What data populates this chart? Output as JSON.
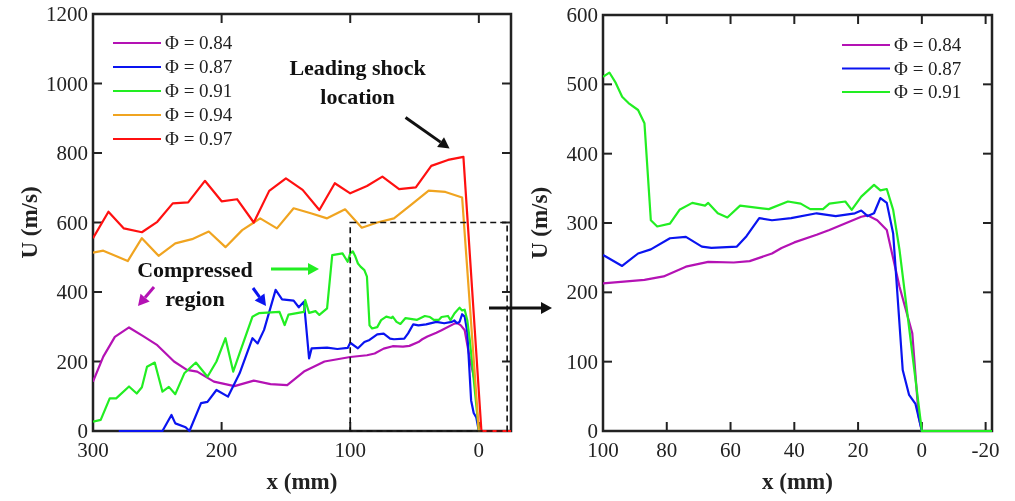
{
  "chart_data": [
    {
      "type": "line",
      "xlabel": "x (mm)",
      "ylabel": "U (m/s)",
      "xlim": [
        300,
        -25
      ],
      "xticks": [
        300,
        200,
        100,
        0
      ],
      "ylim": [
        0,
        1200
      ],
      "yticks": [
        0,
        200,
        400,
        600,
        800,
        1000,
        1200
      ],
      "legend": "top left",
      "grid": false,
      "annotations": [
        "Compressed region",
        {
          "text": "Leading shock location",
          "x": 15,
          "y": 790
        }
      ],
      "series": [
        {
          "name": "Φ = 0.84",
          "color": "#b412b4",
          "x": [
            300,
            292,
            283,
            272,
            261,
            250,
            237,
            227,
            219,
            206,
            190,
            175,
            162,
            149,
            136,
            120,
            100,
            87,
            81,
            74,
            67,
            59,
            54,
            47,
            44,
            40,
            33,
            29,
            19,
            17,
            14,
            11,
            7,
            3
          ],
          "values": [
            142,
            214,
            271,
            298,
            273,
            247,
            200,
            176,
            171,
            142,
            129,
            145,
            135,
            132,
            171,
            200,
            213,
            218,
            223,
            237,
            244,
            243,
            245,
            256,
            264,
            272,
            283,
            290,
            309,
            311,
            304,
            290,
            208,
            141
          ]
        },
        {
          "name": "Φ = 0.87",
          "color": "#0a14f0",
          "x": [
            280,
            250,
            246,
            239,
            236,
            228,
            225,
            216,
            211,
            204,
            195,
            186,
            176,
            172,
            167,
            158,
            153,
            144,
            140,
            136,
            132,
            130,
            118,
            110,
            102,
            100,
            94,
            89,
            85,
            79,
            74,
            69,
            66,
            58,
            55,
            51,
            47,
            41,
            33,
            27,
            21,
            19,
            17,
            15,
            13,
            11,
            9,
            6,
            4,
            2,
            0
          ],
          "values": [
            0,
            0,
            0,
            46,
            22,
            11,
            0,
            80,
            84,
            118,
            99,
            166,
            267,
            252,
            291,
            406,
            379,
            375,
            356,
            372,
            209,
            238,
            240,
            236,
            239,
            254,
            238,
            256,
            262,
            278,
            280,
            266,
            264,
            266,
            281,
            307,
            304,
            307,
            314,
            310,
            314,
            318,
            310,
            314,
            336,
            329,
            285,
            88,
            52,
            39,
            0
          ]
        },
        {
          "name": "Φ = 0.91",
          "color": "#22ee22",
          "x": [
            300,
            294,
            287,
            282,
            272,
            266,
            262,
            258,
            252,
            246,
            241,
            236,
            229,
            220,
            211,
            204,
            197,
            191,
            186,
            176,
            171,
            155,
            151,
            148,
            136,
            135,
            132,
            127,
            124,
            118,
            114,
            106,
            102,
            100,
            98,
            96,
            94,
            92,
            89,
            87,
            85,
            83,
            79,
            76,
            72,
            68,
            67,
            64,
            61,
            57,
            48,
            42,
            38,
            35,
            31,
            29,
            24,
            22,
            19,
            15,
            13,
            11,
            9,
            7,
            0,
            -22
          ],
          "values": [
            27,
            32,
            94,
            94,
            128,
            108,
            126,
            185,
            197,
            113,
            127,
            106,
            166,
            197,
            156,
            200,
            267,
            171,
            224,
            329,
            339,
            343,
            305,
            335,
            343,
            377,
            340,
            345,
            334,
            353,
            506,
            511,
            487,
            511,
            517,
            502,
            482,
            473,
            463,
            444,
            304,
            295,
            299,
            319,
            329,
            325,
            329,
            314,
            308,
            325,
            320,
            331,
            328,
            320,
            320,
            328,
            331,
            319,
            338,
            355,
            347,
            349,
            319,
            261,
            0,
            0
          ]
        },
        {
          "name": "Φ = 0.94",
          "color": "#f0a420",
          "x": [
            300,
            292,
            273,
            262,
            249,
            236,
            223,
            210,
            197,
            184,
            170,
            157,
            144,
            130,
            118,
            104,
            91,
            79,
            66,
            53,
            39,
            26,
            13,
            0,
            -25
          ],
          "values": [
            513,
            519,
            489,
            555,
            504,
            540,
            552,
            574,
            529,
            578,
            612,
            583,
            641,
            626,
            612,
            638,
            585,
            600,
            612,
            650,
            692,
            688,
            672,
            0,
            0
          ]
        },
        {
          "name": "Φ = 0.97",
          "color": "#ff1010",
          "x": [
            300,
            288,
            276,
            262,
            250,
            238,
            226,
            213,
            200,
            188,
            175,
            163,
            150,
            137,
            124,
            112,
            100,
            87,
            75,
            62,
            49,
            37,
            24,
            12,
            -2,
            -25
          ],
          "values": [
            555,
            631,
            583,
            572,
            602,
            655,
            658,
            720,
            661,
            667,
            600,
            691,
            727,
            694,
            636,
            713,
            684,
            705,
            732,
            696,
            701,
            763,
            780,
            789,
            0,
            0
          ]
        }
      ]
    },
    {
      "type": "line",
      "xlabel": "x (mm)",
      "ylabel": "U (m/s)",
      "xlim": [
        100,
        -22
      ],
      "xticks": [
        100,
        80,
        60,
        40,
        20,
        0,
        -20
      ],
      "ylim": [
        0,
        600
      ],
      "yticks": [
        0,
        100,
        200,
        300,
        400,
        500,
        600
      ],
      "legend": "top right",
      "grid": false,
      "series": [
        {
          "name": "Φ = 0.84",
          "color": "#b412b4",
          "x": [
            100,
            87,
            81,
            74,
            67,
            59,
            54,
            47,
            44,
            40,
            33,
            29,
            19,
            17,
            14,
            11,
            7,
            3,
            1,
            0
          ],
          "values": [
            213,
            218,
            223,
            237,
            244,
            243,
            245,
            256,
            264,
            272,
            283,
            290,
            309,
            311,
            304,
            290,
            208,
            141,
            21,
            0
          ]
        },
        {
          "name": "Φ = 0.87",
          "color": "#0a14f0",
          "x": [
            100,
            94,
            89,
            85,
            79,
            74,
            69,
            66,
            58,
            55,
            51,
            47,
            41,
            33,
            27,
            21,
            19,
            17,
            15,
            13,
            11,
            9,
            6,
            4,
            2,
            0
          ],
          "values": [
            254,
            238,
            256,
            262,
            278,
            280,
            266,
            264,
            266,
            281,
            307,
            304,
            307,
            314,
            310,
            314,
            318,
            310,
            314,
            336,
            329,
            285,
            88,
            52,
            39,
            0
          ]
        },
        {
          "name": "Φ = 0.91",
          "color": "#22ee22",
          "x": [
            100,
            98,
            96,
            94,
            92,
            89,
            87,
            85,
            83,
            79,
            76,
            72,
            68,
            67,
            64,
            61,
            57,
            48,
            42,
            38,
            35,
            31,
            29,
            24,
            22,
            19,
            15,
            13,
            11,
            9,
            7,
            0,
            -22
          ],
          "values": [
            511,
            517,
            502,
            482,
            473,
            463,
            444,
            304,
            295,
            299,
            319,
            329,
            325,
            329,
            314,
            308,
            325,
            320,
            331,
            328,
            320,
            320,
            328,
            331,
            319,
            338,
            355,
            347,
            349,
            319,
            261,
            0,
            0
          ]
        }
      ]
    }
  ]
}
